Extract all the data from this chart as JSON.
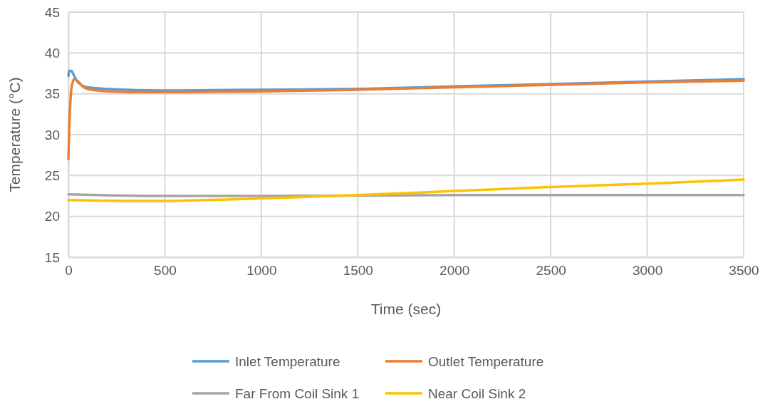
{
  "chart_data": {
    "type": "line",
    "xlabel": "Time (sec)",
    "ylabel": "Temperature (°C)",
    "xlim": [
      0,
      3500
    ],
    "ylim": [
      15,
      45
    ],
    "xticks": [
      0,
      500,
      1000,
      1500,
      2000,
      2500,
      3000,
      3500
    ],
    "yticks": [
      15,
      20,
      25,
      30,
      35,
      40,
      45
    ],
    "grid": true,
    "legend": "bottom",
    "marker": "none",
    "line_style": "solid",
    "series": [
      {
        "name": "Inlet Temperature",
        "color": "#5b9bd5",
        "x": [
          0,
          5,
          15,
          30,
          50,
          100,
          200,
          300,
          500,
          1000,
          1500,
          2000,
          2500,
          3000,
          3500
        ],
        "values": [
          37.2,
          37.8,
          37.8,
          37.2,
          36.4,
          35.8,
          35.6,
          35.5,
          35.4,
          35.5,
          35.6,
          35.9,
          36.2,
          36.5,
          36.8
        ]
      },
      {
        "name": "Outlet Temperature",
        "color": "#ed7d31",
        "x": [
          0,
          5,
          15,
          30,
          50,
          80,
          120,
          300,
          500,
          1000,
          1500,
          2000,
          2500,
          3000,
          3500
        ],
        "values": [
          27,
          31,
          35.5,
          36.8,
          36.5,
          35.8,
          35.5,
          35.2,
          35.2,
          35.3,
          35.5,
          35.8,
          36.1,
          36.4,
          36.6
        ]
      },
      {
        "name": "Far From Coil Sink 1",
        "color": "#a5a5a5",
        "x": [
          0,
          500,
          1000,
          2000,
          3500
        ],
        "values": [
          22.7,
          22.5,
          22.5,
          22.6,
          22.6
        ]
      },
      {
        "name": "Near Coil Sink 2",
        "color": "#ffc000",
        "x": [
          0,
          300,
          500,
          1000,
          1500,
          2000,
          2500,
          3000,
          3500
        ],
        "values": [
          22.0,
          21.9,
          21.9,
          22.2,
          22.6,
          23.1,
          23.6,
          24.0,
          24.5
        ]
      }
    ]
  }
}
